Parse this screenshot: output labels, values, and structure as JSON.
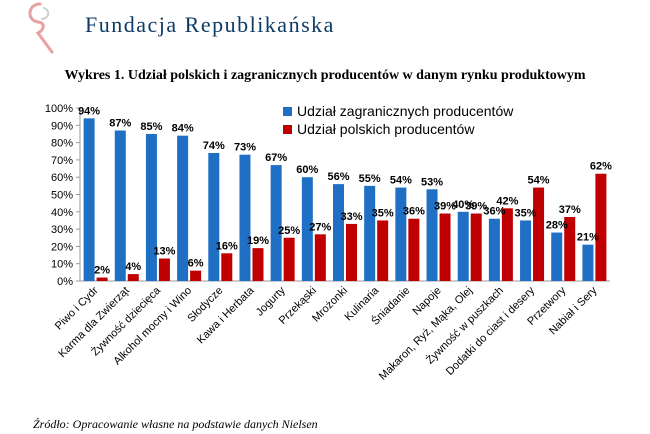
{
  "header": {
    "brand_name": "Fundacja Republikańska",
    "brand_color": "#0d3b66",
    "logo_accent_color": "#e8a0a0"
  },
  "source_note": "Źródło: Opracowanie własne na podstawie danych Nielsen",
  "chart_data": {
    "type": "bar",
    "title": "Wykres 1. Udział polskich i zagranicznych producentów w danym rynku produktowym",
    "xlabel": "",
    "ylabel": "",
    "ylim": [
      0,
      100
    ],
    "yticks": [
      "0%",
      "10%",
      "20%",
      "30%",
      "40%",
      "50%",
      "60%",
      "70%",
      "80%",
      "90%",
      "100%"
    ],
    "legend_position": "top-right",
    "grid": false,
    "categories": [
      "Piwo i Cydr",
      "Karma dla Zwierząt",
      "Żywność dziecięca",
      "Alkohol mocny i Wino",
      "Słodycze",
      "Kawa i Herbata",
      "Jogurty",
      "Przekąski",
      "Mrożonki",
      "Kulinaria",
      "Śniadanie",
      "Napoje",
      "Makaron, Ryż, Mąka, Olej",
      "Żywność w puszkach",
      "Dodatki do ciast i desery",
      "Przetwory",
      "Nabiał i Sery"
    ],
    "series": [
      {
        "name": "Udział zagranicznych producentów",
        "color": "#1f6fc4",
        "values": [
          94,
          87,
          85,
          84,
          74,
          73,
          67,
          60,
          56,
          55,
          54,
          53,
          40,
          36,
          35,
          28,
          21
        ],
        "labels": [
          "94%",
          "87%",
          "85%",
          "84%",
          "74%",
          "73%",
          "67%",
          "60%",
          "56%",
          "55%",
          "54%",
          "53%",
          "40%",
          "36%",
          "35%",
          "28%",
          "21%"
        ]
      },
      {
        "name": "Udział polskich producentów",
        "color": "#c00000",
        "values": [
          2,
          4,
          13,
          6,
          16,
          19,
          25,
          27,
          33,
          35,
          36,
          39,
          39,
          42,
          54,
          37,
          62
        ],
        "labels": [
          "2%",
          "4%",
          "13%",
          "6%",
          "16%",
          "19%",
          "25%",
          "27%",
          "33%",
          "35%",
          "36%",
          "39%",
          "39%",
          "42%",
          "54%",
          "37%",
          "62%"
        ]
      }
    ]
  }
}
